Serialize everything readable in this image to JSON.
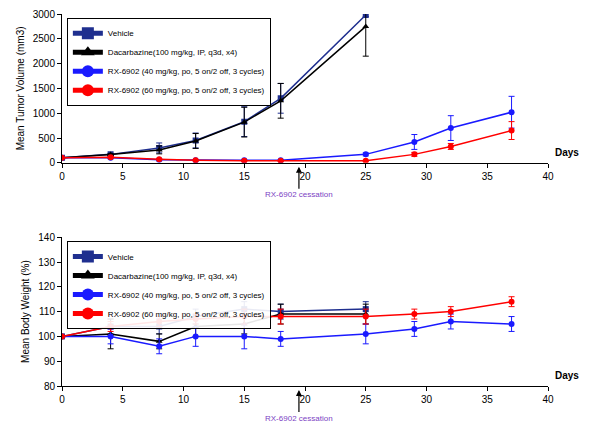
{
  "chart_data": [
    {
      "type": "line",
      "y_label": "Mean Tumor Volume (mm3)",
      "x_label": "Days",
      "xlim": [
        0,
        40
      ],
      "xticks": [
        0,
        5,
        10,
        15,
        20,
        25,
        30,
        35,
        40
      ],
      "ylim": [
        0,
        3000
      ],
      "yticks": [
        0,
        500,
        1000,
        1500,
        2000,
        2500,
        3000
      ],
      "grid": false,
      "legend": "upper left",
      "annotations": [
        {
          "text": "RX-6902 cessation",
          "x": 19.5
        }
      ],
      "series": [
        {
          "name": "Vehicle",
          "color": "#1f2f8f",
          "marker": "square",
          "line_style": "solid",
          "x": [
            0,
            4,
            8,
            11,
            15,
            18,
            25
          ],
          "values": [
            100,
            170,
            300,
            450,
            830,
            1300,
            2980
          ],
          "errors": [
            0,
            20,
            100,
            150,
            300,
            300,
            30
          ]
        },
        {
          "name": "Dacarbazine(100 mg/kg, IP, q3d, x4)",
          "color": "#000000",
          "marker": "triangle",
          "line_style": "solid",
          "x": [
            0,
            4,
            8,
            11,
            15,
            18,
            25
          ],
          "values": [
            100,
            165,
            260,
            440,
            820,
            1250,
            2750
          ],
          "errors": [
            0,
            20,
            80,
            150,
            300,
            350,
            600
          ]
        },
        {
          "name": "RX-6902 (40 mg/kg, po, 5 on/2 off, 3 cycles)",
          "color": "#1a1aff",
          "marker": "circle",
          "line_style": "solid",
          "x": [
            0,
            4,
            8,
            11,
            15,
            18,
            25,
            29,
            32,
            37
          ],
          "values": [
            100,
            100,
            60,
            50,
            50,
            50,
            170,
            420,
            700,
            1020
          ],
          "errors": [
            0,
            20,
            20,
            10,
            10,
            10,
            30,
            150,
            250,
            320
          ]
        },
        {
          "name": "RX-6902 (60 mg/kg, po, 5 on/2 off, 3 cycles)",
          "color": "#ff0000",
          "marker": "circle",
          "line_style": "solid",
          "x": [
            0,
            4,
            8,
            11,
            15,
            18,
            25,
            29,
            32,
            37
          ],
          "values": [
            100,
            110,
            70,
            50,
            40,
            40,
            40,
            170,
            330,
            650
          ],
          "errors": [
            0,
            15,
            10,
            10,
            5,
            5,
            10,
            40,
            60,
            180
          ]
        }
      ]
    },
    {
      "type": "line",
      "y_label": "Mean Body Weight (%)",
      "x_label": "Days",
      "xlim": [
        0,
        40
      ],
      "xticks": [
        0,
        5,
        10,
        15,
        20,
        25,
        30,
        35,
        40
      ],
      "ylim": [
        80,
        140
      ],
      "yticks": [
        80,
        90,
        100,
        110,
        120,
        130,
        140
      ],
      "grid": false,
      "legend": "upper left",
      "annotations": [
        {
          "text": "RX-6902 cessation",
          "x": 19.5
        }
      ],
      "series": [
        {
          "name": "Vehicle",
          "color": "#1f2f8f",
          "marker": "square",
          "line_style": "solid",
          "x": [
            0,
            4,
            8,
            11,
            15,
            18,
            25
          ],
          "values": [
            100,
            104,
            104,
            108,
            111,
            110,
            111
          ],
          "errors": [
            0,
            3,
            3,
            3,
            3,
            3,
            3
          ]
        },
        {
          "name": "Dacarbazine(100 mg/kg, IP, q3d, x4)",
          "color": "#000000",
          "marker": "triangle",
          "line_style": "solid",
          "x": [
            0,
            4,
            8,
            11,
            15,
            18,
            25
          ],
          "values": [
            100,
            101,
            98,
            104,
            105,
            109,
            109
          ],
          "errors": [
            0,
            6,
            3,
            4,
            4,
            4,
            4
          ]
        },
        {
          "name": "RX-6902 (40 mg/kg, po, 5 on/2 off, 3 cycles)",
          "color": "#1a1aff",
          "marker": "circle",
          "line_style": "solid",
          "x": [
            0,
            4,
            8,
            11,
            15,
            18,
            25,
            29,
            32,
            37
          ],
          "values": [
            100,
            100,
            96,
            100,
            100,
            99,
            101,
            103,
            106,
            105
          ],
          "errors": [
            0,
            3,
            3,
            4,
            5,
            3,
            4,
            3,
            3,
            3
          ]
        },
        {
          "name": "RX-6902 (60 mg/kg, po, 5 on/2 off, 3 cycles)",
          "color": "#ff0000",
          "marker": "circle",
          "line_style": "solid",
          "x": [
            0,
            4,
            8,
            11,
            15,
            18,
            25,
            29,
            32,
            37
          ],
          "values": [
            100,
            104,
            106,
            107,
            108,
            108,
            108,
            109,
            110,
            114
          ],
          "errors": [
            0,
            2,
            2,
            2,
            3,
            3,
            3,
            2,
            2,
            2
          ]
        }
      ]
    }
  ]
}
